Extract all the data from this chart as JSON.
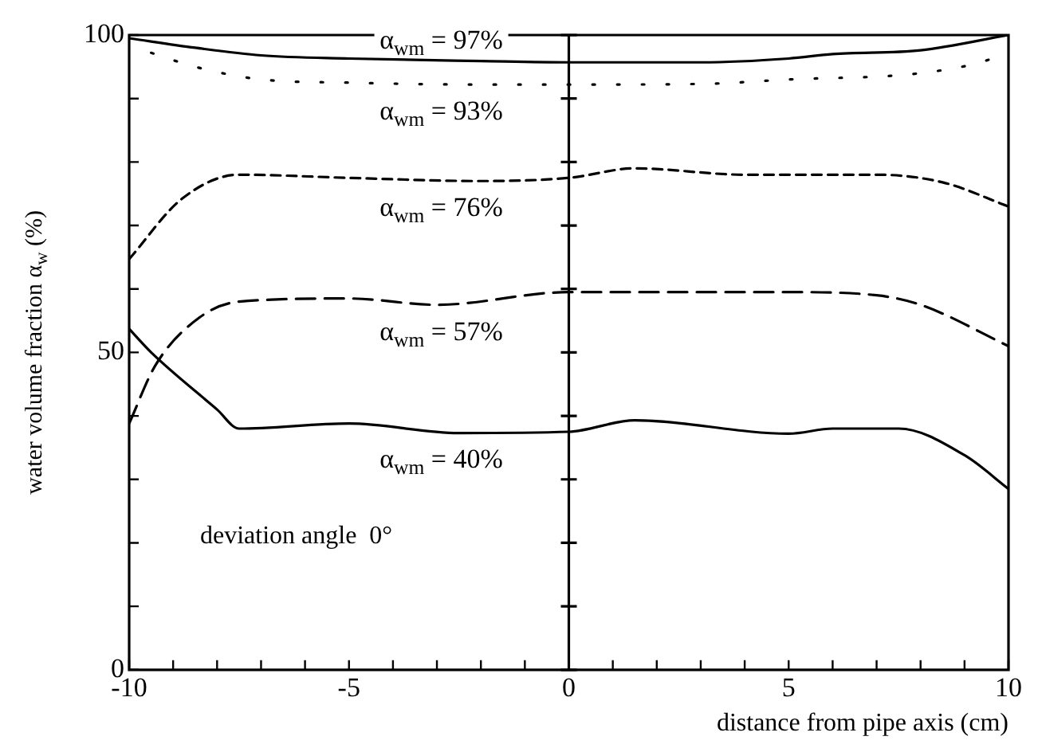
{
  "chart_data": {
    "type": "line",
    "xlabel": "distance from pipe axis (cm)",
    "ylabel": "water volume fraction α$_{w}$ (%)",
    "xlim": [
      -10,
      10
    ],
    "ylim": [
      0,
      100
    ],
    "xticks": [
      -10,
      {
        "value": -9,
        "label": null
      },
      {
        "value": -8,
        "label": null
      },
      {
        "value": -7,
        "label": null
      },
      {
        "value": -6,
        "label": null
      },
      -5,
      {
        "value": -4,
        "label": null
      },
      {
        "value": -3,
        "label": null
      },
      {
        "value": -2,
        "label": null
      },
      {
        "value": -1,
        "label": null
      },
      0,
      {
        "value": 1,
        "label": null
      },
      {
        "value": 2,
        "label": null
      },
      {
        "value": 3,
        "label": null
      },
      {
        "value": 4,
        "label": null
      },
      5,
      {
        "value": 6,
        "label": null
      },
      {
        "value": 7,
        "label": null
      },
      {
        "value": 8,
        "label": null
      },
      {
        "value": 9,
        "label": null
      },
      10
    ],
    "yticks": [
      0,
      {
        "value": 10,
        "label": null
      },
      {
        "value": 20,
        "label": null
      },
      {
        "value": 30,
        "label": null
      },
      {
        "value": 40,
        "label": null
      },
      50,
      {
        "value": 60,
        "label": null
      },
      {
        "value": 70,
        "label": null
      },
      {
        "value": 80,
        "label": null
      },
      {
        "value": 90,
        "label": null
      },
      100
    ],
    "grid": false,
    "legend": false,
    "marker": "none",
    "ref_lines": [
      {
        "axis": "x",
        "value": 0,
        "color": "#000000",
        "line_style": "solid"
      }
    ],
    "series": [
      {
        "color": "#000000",
        "line_style": "solid",
        "x": [
          -10,
          -8.5,
          -7,
          -5,
          -2,
          0,
          3,
          5,
          6,
          8,
          10
        ],
        "values": [
          99.5,
          98,
          96.8,
          96.3,
          95.9,
          95.7,
          95.7,
          96.3,
          97,
          97.6,
          100
        ]
      },
      {
        "color": "#000000",
        "line_style": "dotted",
        "x": [
          -9.5,
          -8.5,
          -7,
          -5,
          -2,
          0,
          3,
          5,
          8,
          9.5,
          10
        ],
        "values": [
          97.2,
          95,
          93,
          92.5,
          92.2,
          92.2,
          92.3,
          93,
          94,
          96,
          97.5
        ]
      },
      {
        "color": "#000000",
        "line_style": "dashed",
        "x": [
          -10,
          -8.8,
          -7.5,
          -5,
          -2,
          0,
          1.5,
          4,
          7,
          8.5,
          10
        ],
        "values": [
          64.7,
          74.2,
          78,
          77.5,
          77,
          77.5,
          79,
          78,
          78,
          76.8,
          73
        ]
      },
      {
        "color": "#000000",
        "line_style": "longdash",
        "x": [
          -10,
          -9.4,
          -8.4,
          -7.5,
          -5,
          -3,
          0,
          5,
          7,
          8,
          10
        ],
        "values": [
          38.8,
          48,
          55.5,
          58,
          58.5,
          57.5,
          59.5,
          59.5,
          59,
          57.5,
          51
        ]
      },
      {
        "color": "#000000",
        "line_style": "solid",
        "x": [
          -10,
          -9.5,
          -8,
          -7.5,
          -5,
          -2.5,
          0,
          1.5,
          5,
          6,
          7.5,
          9,
          10
        ],
        "values": [
          53.7,
          50,
          41,
          38,
          38.8,
          37.3,
          37.5,
          39.3,
          37.2,
          38,
          38,
          33.8,
          28.5
        ]
      }
    ],
    "annotations": [
      "α$_{wm}$ = 97%",
      "α$_{wm}$ = 93%",
      "α$_{wm}$ = 76%",
      "α$_{wm}$ = 57%",
      "α$_{wm}$ = 40%",
      "deviation angle  0°"
    ]
  }
}
